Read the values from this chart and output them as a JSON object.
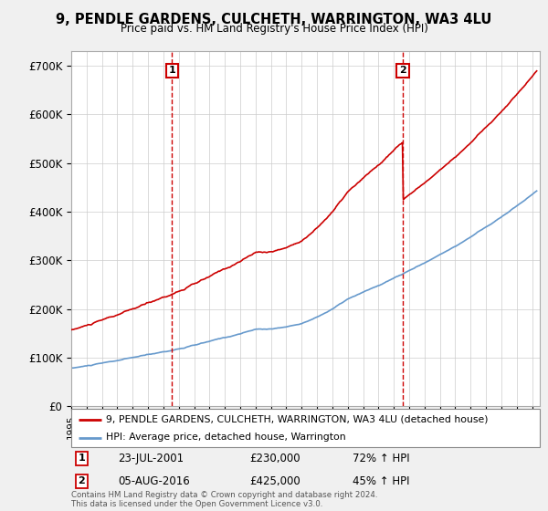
{
  "title": "9, PENDLE GARDENS, CULCHETH, WARRINGTON, WA3 4LU",
  "subtitle": "Price paid vs. HM Land Registry's House Price Index (HPI)",
  "ylabel_ticks": [
    "£0",
    "£100K",
    "£200K",
    "£300K",
    "£400K",
    "£500K",
    "£600K",
    "£700K"
  ],
  "ytick_vals": [
    0,
    100000,
    200000,
    300000,
    400000,
    500000,
    600000,
    700000
  ],
  "ylim": [
    0,
    730000
  ],
  "xlim_start": 1995.0,
  "xlim_end": 2025.5,
  "sale1_x": 2001.55,
  "sale1_y": 230000,
  "sale2_x": 2016.59,
  "sale2_y": 425000,
  "sale_color": "#cc0000",
  "hpi_color": "#6699cc",
  "legend_line1": "9, PENDLE GARDENS, CULCHETH, WARRINGTON, WA3 4LU (detached house)",
  "legend_line2": "HPI: Average price, detached house, Warrington",
  "note1_date": "23-JUL-2001",
  "note1_price": "£230,000",
  "note1_hpi": "72% ↑ HPI",
  "note2_date": "05-AUG-2016",
  "note2_price": "£425,000",
  "note2_hpi": "45% ↑ HPI",
  "footer": "Contains HM Land Registry data © Crown copyright and database right 2024.\nThis data is licensed under the Open Government Licence v3.0.",
  "background_color": "#f0f0f0",
  "plot_bg": "#ffffff"
}
